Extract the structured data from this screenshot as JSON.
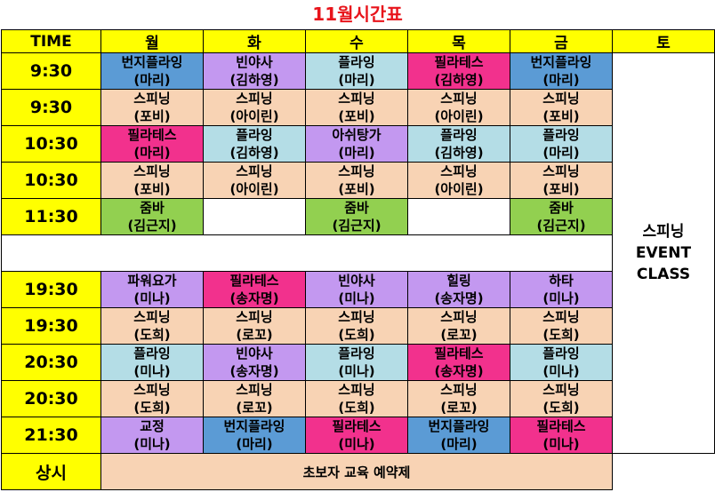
{
  "title": "11월시간표",
  "header": {
    "time": "TIME",
    "days": [
      "월",
      "화",
      "수",
      "목",
      "금",
      "토"
    ]
  },
  "saturday": {
    "line1": "스피닝",
    "line2": "EVENT",
    "line3": "CLASS"
  },
  "rows": [
    {
      "time": "9:30",
      "cells": [
        {
          "name": "번지플라잉",
          "teacher": "(마리)",
          "color": "bungee"
        },
        {
          "name": "빈야사",
          "teacher": "(김하영)",
          "color": "bikram"
        },
        {
          "name": "플라잉",
          "teacher": "(마리)",
          "color": "fly"
        },
        {
          "name": "필라테스",
          "teacher": "(김하영)",
          "color": "pilates"
        },
        {
          "name": "번지플라잉",
          "teacher": "(마리)",
          "color": "bungee"
        }
      ]
    },
    {
      "time": "9:30",
      "cells": [
        {
          "name": "스피닝",
          "teacher": "(포비)",
          "color": "spin"
        },
        {
          "name": "스피닝",
          "teacher": "(아이린)",
          "color": "spin"
        },
        {
          "name": "스피닝",
          "teacher": "(포비)",
          "color": "spin"
        },
        {
          "name": "스피닝",
          "teacher": "(아이린)",
          "color": "spin"
        },
        {
          "name": "스피닝",
          "teacher": "(포비)",
          "color": "spin"
        }
      ]
    },
    {
      "time": "10:30",
      "cells": [
        {
          "name": "필라테스",
          "teacher": "(마리)",
          "color": "pilates"
        },
        {
          "name": "플라잉",
          "teacher": "(김하영)",
          "color": "fly"
        },
        {
          "name": "아쉬탕가",
          "teacher": "(마리)",
          "color": "ashi"
        },
        {
          "name": "플라잉",
          "teacher": "(김하영)",
          "color": "fly"
        },
        {
          "name": "플라잉",
          "teacher": "(마리)",
          "color": "fly"
        }
      ]
    },
    {
      "time": "10:30",
      "cells": [
        {
          "name": "스피닝",
          "teacher": "(포비)",
          "color": "spin"
        },
        {
          "name": "스피닝",
          "teacher": "(아이린)",
          "color": "spin"
        },
        {
          "name": "스피닝",
          "teacher": "(포비)",
          "color": "spin"
        },
        {
          "name": "스피닝",
          "teacher": "(아이린)",
          "color": "spin"
        },
        {
          "name": "스피닝",
          "teacher": "(포비)",
          "color": "spin"
        }
      ]
    },
    {
      "time": "11:30",
      "cells": [
        {
          "name": "줌바",
          "teacher": "(김근지)",
          "color": "zumba"
        },
        {
          "name": "",
          "teacher": "",
          "color": "blank"
        },
        {
          "name": "줌바",
          "teacher": "(김근지)",
          "color": "zumba"
        },
        {
          "name": "",
          "teacher": "",
          "color": "blank"
        },
        {
          "name": "줌바",
          "teacher": "(김근지)",
          "color": "zumba"
        }
      ]
    },
    {
      "time": "19:30",
      "cells": [
        {
          "name": "파워요가",
          "teacher": "(미나)",
          "color": "power"
        },
        {
          "name": "필라테스",
          "teacher": "(송자명)",
          "color": "pilates"
        },
        {
          "name": "빈야사",
          "teacher": "(미나)",
          "color": "bikram"
        },
        {
          "name": "힐링",
          "teacher": "(송자명)",
          "color": "heal"
        },
        {
          "name": "하타",
          "teacher": "(미나)",
          "color": "hata"
        }
      ]
    },
    {
      "time": "19:30",
      "cells": [
        {
          "name": "스피닝",
          "teacher": "(도희)",
          "color": "spin"
        },
        {
          "name": "스피닝",
          "teacher": "(로꼬)",
          "color": "spin"
        },
        {
          "name": "스피닝",
          "teacher": "(도희)",
          "color": "spin"
        },
        {
          "name": "스피닝",
          "teacher": "(로꼬)",
          "color": "spin"
        },
        {
          "name": "스피닝",
          "teacher": "(도희)",
          "color": "spin"
        }
      ]
    },
    {
      "time": "20:30",
      "cells": [
        {
          "name": "플라잉",
          "teacher": "(미나)",
          "color": "fly"
        },
        {
          "name": "빈야사",
          "teacher": "(송자명)",
          "color": "bikram"
        },
        {
          "name": "플라잉",
          "teacher": "(미나)",
          "color": "fly"
        },
        {
          "name": "필라테스",
          "teacher": "(송자명)",
          "color": "pilates"
        },
        {
          "name": "플라잉",
          "teacher": "(미나)",
          "color": "fly"
        }
      ]
    },
    {
      "time": "20:30",
      "cells": [
        {
          "name": "스피닝",
          "teacher": "(도희)",
          "color": "spin"
        },
        {
          "name": "스피닝",
          "teacher": "(로꼬)",
          "color": "spin"
        },
        {
          "name": "스피닝",
          "teacher": "(도희)",
          "color": "spin"
        },
        {
          "name": "스피닝",
          "teacher": "(로꼬)",
          "color": "spin"
        },
        {
          "name": "스피닝",
          "teacher": "(도희)",
          "color": "spin"
        }
      ]
    },
    {
      "time": "21:30",
      "cells": [
        {
          "name": "교정",
          "teacher": "(미나)",
          "color": "posture"
        },
        {
          "name": "번지플라잉",
          "teacher": "(마리)",
          "color": "bungee"
        },
        {
          "name": "필라테스",
          "teacher": "(미나)",
          "color": "pilates"
        },
        {
          "name": "번지플라잉",
          "teacher": "(마리)",
          "color": "bungee"
        },
        {
          "name": "필라테스",
          "teacher": "(미나)",
          "color": "pilates"
        }
      ]
    }
  ],
  "footer": {
    "label": "상시",
    "note": "초보자 교육 예약제"
  }
}
